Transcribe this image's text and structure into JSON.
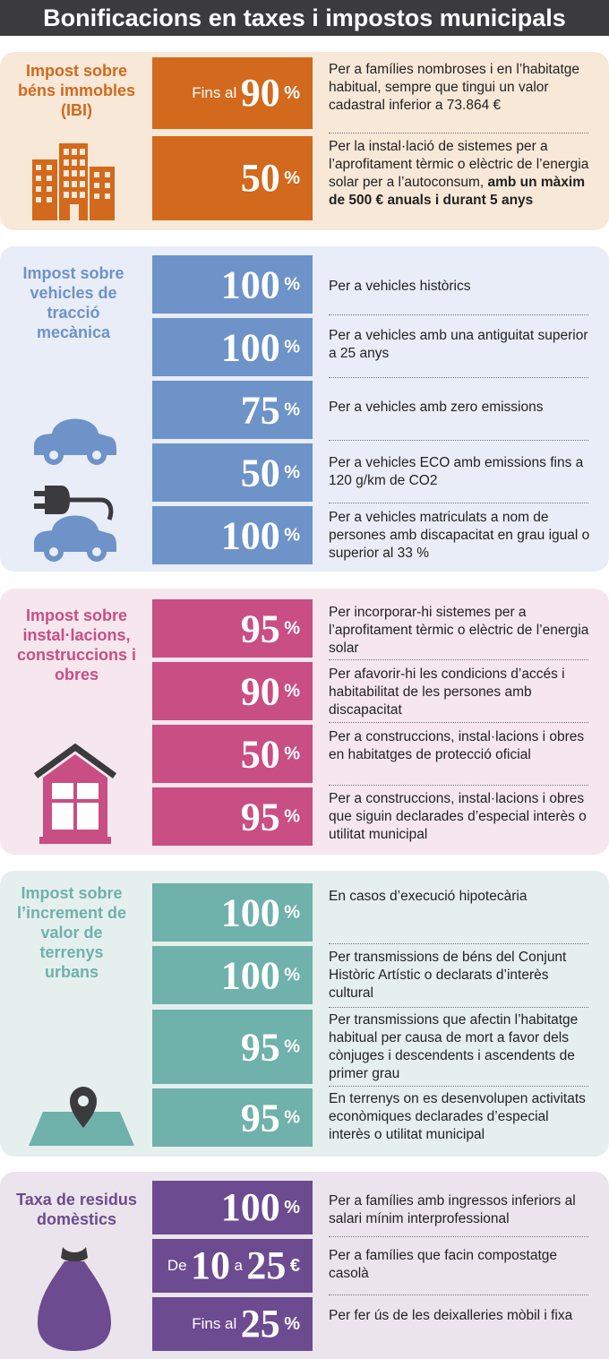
{
  "title": "Bonificacions en taxes i impostos municipals",
  "colors": {
    "ibi": "#d2691c",
    "ibi_bg": "#f8e8d8",
    "vehicles": "#6d93c8",
    "vehicles_bg": "#e9edf7",
    "obres": "#c84e83",
    "obres_bg": "#f6e7ef",
    "terrenys": "#6fb1ab",
    "terrenys_bg": "#e5f0ee",
    "residus": "#6c4b91",
    "residus_bg": "#ebe4ec"
  },
  "sections": {
    "ibi": {
      "title": "Impost sobre béns immobles (IBI)",
      "icon": "building-icon",
      "rows": [
        {
          "prefix": "Fins al",
          "value": "90",
          "unit": "%",
          "desc": "Per a famílies nombroses i en l’habitatge habitual, sempre que tingui un valor cadastral inferior a 73.864 €"
        },
        {
          "value": "50",
          "unit": "%",
          "desc": "Per la instal·lació de sistemes per a l’aprofitament tèrmic o elèctric de l’energia solar per a l’autoconsum,",
          "desc_bold": "amb un màxim de 500 € anuals i durant 5 anys"
        }
      ]
    },
    "vehicles": {
      "title": "Impost sobre vehicles de tracció mecànica",
      "icons": [
        "car-icon",
        "plug-icon",
        "car-icon"
      ],
      "rows": [
        {
          "value": "100",
          "unit": "%",
          "desc": "Per a vehicles històrics"
        },
        {
          "value": "100",
          "unit": "%",
          "desc": "Per a vehicles amb una antiguitat superior a 25 anys"
        },
        {
          "value": "75",
          "unit": "%",
          "desc": "Per a vehicles amb zero emissions"
        },
        {
          "value": "50",
          "unit": "%",
          "desc": "Per a vehicles ECO amb emissions fins a 120 g/km de CO2"
        },
        {
          "value": "100",
          "unit": "%",
          "desc": "Per a vehicles matriculats a nom de persones amb discapacitat en grau igual o superior al 33 %"
        }
      ]
    },
    "obres": {
      "title": "Impost sobre instal·lacions, construccions i obres",
      "icon": "house-icon",
      "rows": [
        {
          "value": "95",
          "unit": "%",
          "desc": "Per incorporar-hi sistemes per a l’aprofitament tèrmic o elèctric de l’energia solar"
        },
        {
          "value": "90",
          "unit": "%",
          "desc": "Per afavorir-hi les condicions d’accés i habitabilitat de les persones amb discapacitat"
        },
        {
          "value": "50",
          "unit": "%",
          "desc": "Per a construccions, instal·lacions i obres en habitatges de protecció oficial"
        },
        {
          "value": "95",
          "unit": "%",
          "desc": "Per a construccions, instal·lacions i obres que siguin declarades d’especial interès o utilitat municipal"
        }
      ]
    },
    "terrenys": {
      "title": "Impost sobre l’increment de valor de terrenys urbans",
      "icon": "map-pin-icon",
      "rows": [
        {
          "value": "100",
          "unit": "%",
          "desc": "En casos d’execució hipotecària"
        },
        {
          "value": "100",
          "unit": "%",
          "desc": "Per transmissions de béns del Conjunt Històric Artístic o declarats d’interès cultural"
        },
        {
          "value": "95",
          "unit": "%",
          "desc": "Per transmissions que afectin l’habitatge habitual per causa de mort a favor dels cònjuges i descendents i ascendents de primer grau"
        },
        {
          "value": "95",
          "unit": "%",
          "desc": "En terrenys on es desenvolupen activitats econòmiques declarades d’especial interès o utilitat municipal"
        }
      ]
    },
    "residus": {
      "title": "Taxa de residus domèstics",
      "icon": "trash-bag-icon",
      "rows": [
        {
          "value": "100",
          "unit": "%",
          "desc": "Per a famílies amb ingressos inferiors al salari mínim interprofessional"
        },
        {
          "prefix": "De",
          "value": "10",
          "mid": "a",
          "value2": "25",
          "unit": "€",
          "desc": "Per a famílies que facin compostatge casolà"
        },
        {
          "prefix": "Fins al",
          "value": "25",
          "unit": "%",
          "desc": "Per fer ús de les deixalleries mòbil i fixa"
        }
      ]
    }
  }
}
